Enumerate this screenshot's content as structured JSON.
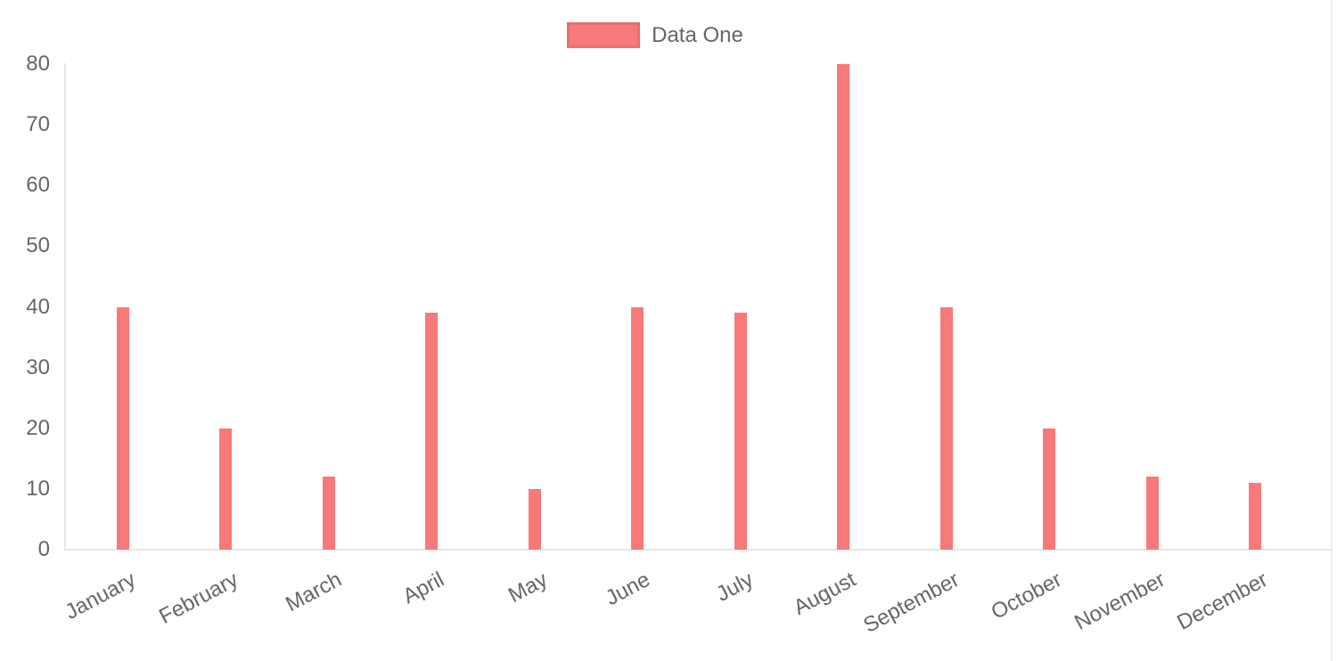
{
  "chart_data": {
    "type": "bar",
    "categories": [
      "January",
      "February",
      "March",
      "April",
      "May",
      "June",
      "July",
      "August",
      "September",
      "October",
      "November",
      "December"
    ],
    "series": [
      {
        "name": "Data One",
        "values": [
          40,
          20,
          12,
          39,
          10,
          40,
          39,
          80,
          40,
          20,
          12,
          11
        ],
        "color": "#f87979"
      }
    ],
    "legend": {
      "position": "top",
      "label": "Data One"
    },
    "xlabel": "",
    "ylabel": "",
    "ylim": [
      0,
      80
    ],
    "y_tick_step": 10,
    "y_ticks": [
      0,
      10,
      20,
      30,
      40,
      50,
      60,
      70,
      80
    ],
    "grid": "off",
    "x_label_rotation_deg": -28,
    "colors": {
      "bar": "#f87979",
      "axis_text": "#666666",
      "axis_line": "#e7e7e7",
      "container_right_border": "#ededed",
      "background": "#ffffff"
    }
  }
}
